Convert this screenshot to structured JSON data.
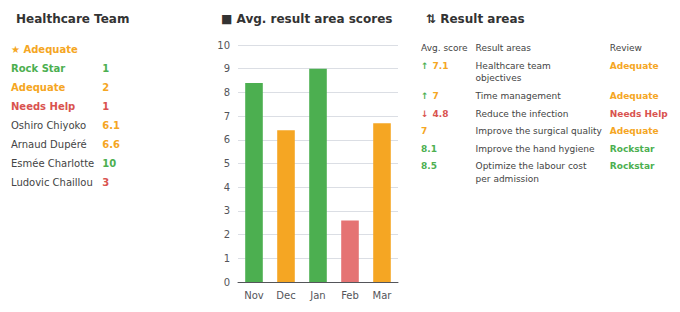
{
  "chart_data": [
    {
      "type": "table",
      "title": "Healthcare Team",
      "rows": [
        [
          {
            "text": "★ Adequate",
            "color": "#f5a623"
          }
        ],
        [
          {
            "text": "Rock Star",
            "color": "#4caf50"
          },
          {
            "text": "1",
            "color": "#4caf50"
          }
        ],
        [
          {
            "text": "Adequate",
            "color": "#f5a623"
          },
          {
            "text": "2",
            "color": "#f5a623"
          }
        ],
        [
          {
            "text": "Needs Help",
            "color": "#d9534f"
          },
          {
            "text": "1",
            "color": "#d9534f"
          }
        ],
        [
          "Oshiro Chiyoko",
          {
            "text": "6.1",
            "color": "#f5a623"
          }
        ],
        [
          "Arnaud Dupéré",
          {
            "text": "6.6",
            "color": "#f5a623"
          }
        ],
        [
          "Esmée Charlotte",
          {
            "text": "10",
            "color": "#4caf50"
          }
        ],
        [
          "Ludovic Chaillou",
          {
            "text": "3",
            "color": "#d9534f"
          }
        ]
      ]
    },
    {
      "type": "bar",
      "title": "■ Avg. result area scores",
      "categories": [
        "Nov",
        "Dec",
        "Jan",
        "Feb",
        "Mar"
      ],
      "values": [
        8.4,
        6.4,
        9.0,
        2.6,
        6.7
      ],
      "colors": [
        "#4caf50",
        "#f5a623",
        "#4caf50",
        "#e57373",
        "#f5a623"
      ],
      "ylim": [
        0,
        10
      ],
      "yticks": [
        0,
        1,
        2,
        3,
        4,
        5,
        6,
        7,
        8,
        9,
        10
      ],
      "grid": true
    },
    {
      "type": "table",
      "title": "⇅ Result areas",
      "rows": [
        [
          "Avg. score",
          "Result areas",
          "Review"
        ],
        [
          [
            {
              "text": "↑",
              "color": "#4caf50"
            },
            {
              "text": "7.1",
              "color": "#f5a623"
            }
          ],
          "Healthcare team\nobjectives",
          {
            "text": "Adequate",
            "color": "#f5a623"
          }
        ],
        [
          [
            {
              "text": "↑",
              "color": "#4caf50"
            },
            {
              "text": "7",
              "color": "#f5a623"
            }
          ],
          "Time management",
          {
            "text": "Adequate",
            "color": "#f5a623"
          }
        ],
        [
          [
            {
              "text": "↓",
              "color": "#d9534f"
            },
            {
              "text": "4.8",
              "color": "#d9534f"
            }
          ],
          "Reduce the infection",
          {
            "text": "Needs Help",
            "color": "#d9534f"
          }
        ],
        [
          {
            "text": "7",
            "color": "#f5a623"
          },
          "Improve the surgical quality",
          {
            "text": "Adequate",
            "color": "#f5a623"
          }
        ],
        [
          {
            "text": "8.1",
            "color": "#4caf50"
          },
          "Improve the hand hygiene",
          {
            "text": "Rockstar",
            "color": "#4caf50"
          }
        ],
        [
          {
            "text": "8.5",
            "color": "#4caf50"
          },
          "Optimize the labour cost\nper admission",
          {
            "text": "Rockstar",
            "color": "#4caf50"
          }
        ]
      ]
    }
  ]
}
